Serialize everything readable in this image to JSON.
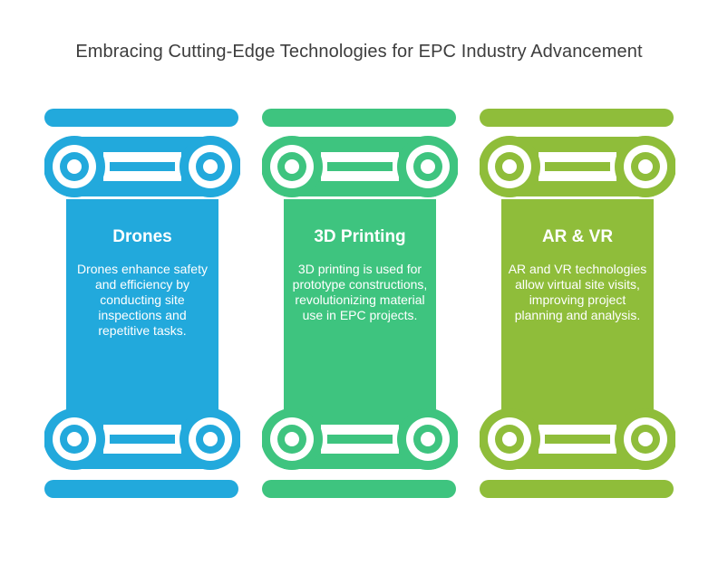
{
  "title": "Embracing Cutting-Edge Technologies for EPC Industry Advancement",
  "pillars": [
    {
      "title": "Drones",
      "description": "Drones enhance safety and efficiency by conducting site inspections and repetitive tasks.",
      "color": "#22a9dc"
    },
    {
      "title": "3D Printing",
      "description": "3D printing is used for prototype constructions, revolutionizing material use in EPC projects.",
      "color": "#3ec47f"
    },
    {
      "title": "AR & VR",
      "description": "AR and VR technologies allow virtual site visits, improving project planning and analysis.",
      "color": "#8fbd3a"
    }
  ]
}
